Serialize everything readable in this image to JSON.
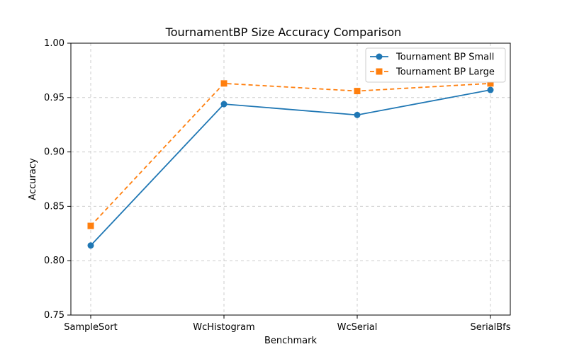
{
  "chart_data": {
    "type": "line",
    "title": "TournamentBP Size Accuracy Comparison",
    "xlabel": "Benchmark",
    "ylabel": "Accuracy",
    "categories": [
      "SampleSort",
      "WcHistogram",
      "WcSerial",
      "SerialBfs"
    ],
    "ylim": [
      0.75,
      1.0
    ],
    "yticks": [
      "0.75",
      "0.80",
      "0.85",
      "0.90",
      "0.95",
      "1.00"
    ],
    "grid": true,
    "legend_position": "top-right",
    "series": [
      {
        "name": "Tournament BP Small",
        "values": [
          0.814,
          0.944,
          0.934,
          0.957
        ],
        "color": "#1f77b4",
        "marker": "circle",
        "line_style": "solid"
      },
      {
        "name": "Tournament BP Large",
        "values": [
          0.832,
          0.963,
          0.956,
          0.963
        ],
        "color": "#ff7f0e",
        "marker": "square",
        "line_style": "dashed"
      }
    ]
  }
}
